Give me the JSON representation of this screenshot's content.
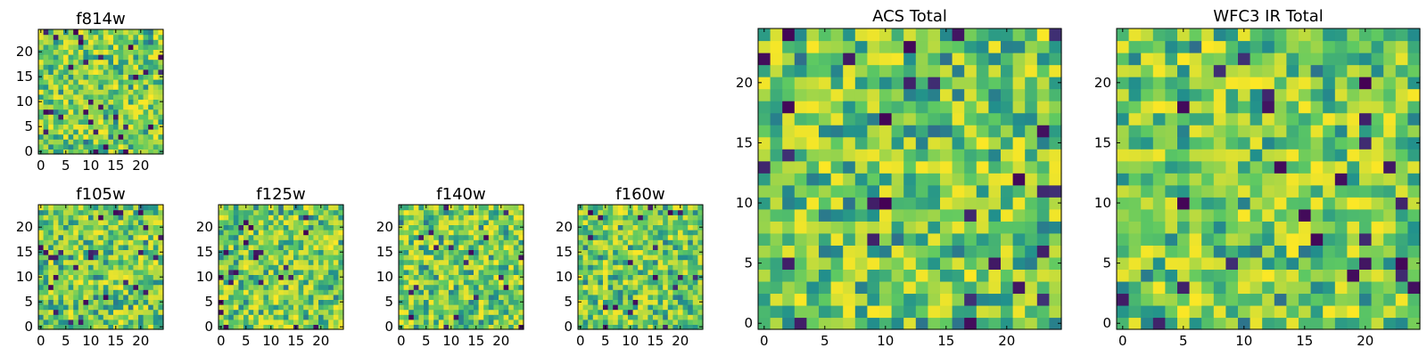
{
  "figure": {
    "colormap": [
      "#440154",
      "#3b528b",
      "#21918c",
      "#5ec962",
      "#fde725"
    ]
  },
  "chart_data": [
    {
      "type": "heatmap",
      "title": "f814w",
      "grid": [
        25,
        25
      ],
      "xlim": [
        -0.5,
        24.5
      ],
      "ylim": [
        -0.5,
        24.5
      ],
      "xticks": [
        0,
        5,
        10,
        15,
        20
      ],
      "yticks": [
        0,
        5,
        10,
        15,
        20
      ],
      "seed": 11,
      "value_range": [
        0,
        1
      ]
    },
    {
      "type": "heatmap",
      "title": "f105w",
      "grid": [
        25,
        25
      ],
      "xlim": [
        -0.5,
        24.5
      ],
      "ylim": [
        -0.5,
        24.5
      ],
      "xticks": [
        0,
        5,
        10,
        15,
        20
      ],
      "yticks": [
        0,
        5,
        10,
        15,
        20
      ],
      "seed": 23,
      "value_range": [
        0,
        1
      ]
    },
    {
      "type": "heatmap",
      "title": "f125w",
      "grid": [
        25,
        25
      ],
      "xlim": [
        -0.5,
        24.5
      ],
      "ylim": [
        -0.5,
        24.5
      ],
      "xticks": [
        0,
        5,
        10,
        15,
        20
      ],
      "yticks": [
        0,
        5,
        10,
        15,
        20
      ],
      "seed": 37,
      "value_range": [
        0,
        1
      ]
    },
    {
      "type": "heatmap",
      "title": "f140w",
      "grid": [
        25,
        25
      ],
      "xlim": [
        -0.5,
        24.5
      ],
      "ylim": [
        -0.5,
        24.5
      ],
      "xticks": [
        0,
        5,
        10,
        15,
        20
      ],
      "yticks": [
        0,
        5,
        10,
        15,
        20
      ],
      "seed": 41,
      "value_range": [
        0,
        1
      ]
    },
    {
      "type": "heatmap",
      "title": "f160w",
      "grid": [
        25,
        25
      ],
      "xlim": [
        -0.5,
        24.5
      ],
      "ylim": [
        -0.5,
        24.5
      ],
      "xticks": [
        0,
        5,
        10,
        15,
        20
      ],
      "yticks": [
        0,
        5,
        10,
        15,
        20
      ],
      "seed": 53,
      "value_range": [
        0,
        1
      ]
    },
    {
      "type": "heatmap",
      "title": "ACS Total",
      "grid": [
        25,
        25
      ],
      "xlim": [
        -0.5,
        24.5
      ],
      "ylim": [
        -0.5,
        24.5
      ],
      "xticks": [
        0,
        5,
        10,
        15,
        20
      ],
      "yticks": [
        0,
        5,
        10,
        15,
        20
      ],
      "seed": 67,
      "value_range": [
        0,
        1
      ]
    },
    {
      "type": "heatmap",
      "title": "WFC3 IR Total",
      "grid": [
        25,
        25
      ],
      "xlim": [
        -0.5,
        24.5
      ],
      "ylim": [
        -0.5,
        24.5
      ],
      "xticks": [
        0,
        5,
        10,
        15,
        20
      ],
      "yticks": [
        0,
        5,
        10,
        15,
        20
      ],
      "seed": 79,
      "value_range": [
        0,
        1
      ]
    }
  ]
}
